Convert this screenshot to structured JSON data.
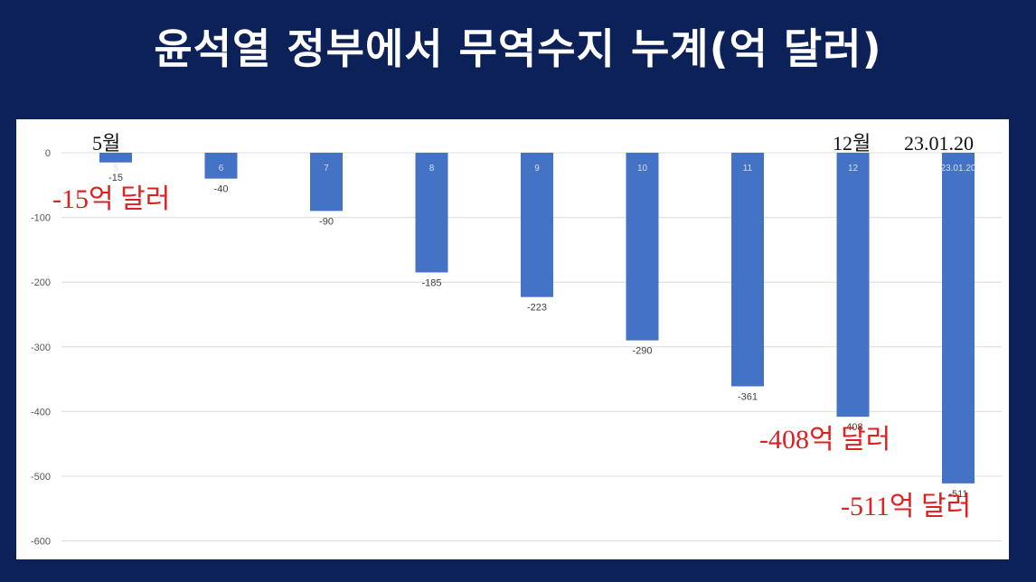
{
  "title": "윤석열 정부에서 무역수지 누계(억 달러)",
  "chart_data": {
    "type": "bar",
    "categories": [
      "5",
      "6",
      "7",
      "8",
      "9",
      "10",
      "11",
      "12",
      "23.01.20"
    ],
    "values": [
      -15,
      -40,
      -90,
      -185,
      -223,
      -290,
      -361,
      -408,
      -511
    ],
    "data_labels": [
      "-15",
      "-40",
      "-90",
      "-185",
      "-223",
      "-290",
      "-361",
      "-408",
      "-511"
    ],
    "ylim": [
      -600,
      0
    ],
    "yticks": [
      0,
      -100,
      -200,
      -300,
      -400,
      -500,
      -600
    ],
    "grid": true,
    "bar_color": "#4472c4",
    "annotations": {
      "may": "5월",
      "dec": "12월",
      "jan": "23.01.20",
      "first": "-15억 달러",
      "dec_total": "-408억 달러",
      "latest": "-511억 달러"
    }
  }
}
